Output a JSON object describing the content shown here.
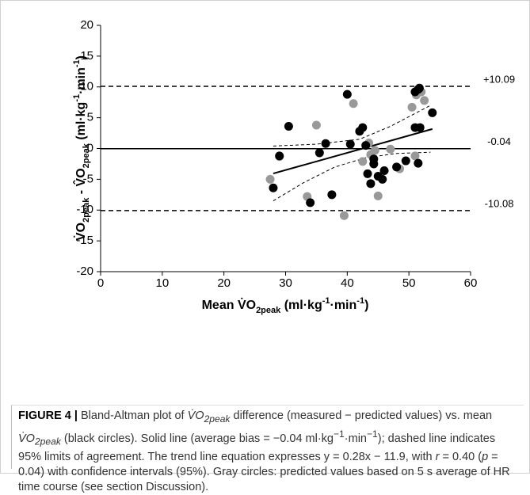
{
  "chart_data": {
    "type": "scatter",
    "ylabel": [
      "V̇O",
      "2peak",
      " - ",
      "V̂O",
      "2peak",
      " (ml·kg",
      "-1",
      "·min",
      "-1",
      ")"
    ],
    "xlabel": [
      "Mean V̇O",
      "2peak",
      " (ml·kg",
      "-1",
      "·min",
      "-1",
      ")"
    ],
    "xlim": [
      0,
      60
    ],
    "xticks": [
      0,
      10,
      20,
      30,
      40,
      50,
      60
    ],
    "ylim": [
      -20,
      20
    ],
    "yticks": [
      -20,
      -15,
      -10,
      -5,
      0,
      5,
      10,
      15,
      20
    ],
    "series": [
      {
        "color": "#000000",
        "x": [
          28,
          29,
          30.5,
          35.5,
          36.5,
          34,
          37.5,
          40,
          40.5,
          42,
          42.5,
          43,
          43.3,
          43.8,
          44.3,
          44.3,
          45,
          45.7,
          46,
          48,
          49.5,
          51,
          51,
          51.5,
          51.7,
          51.8,
          51.5,
          53.8
        ],
        "values": [
          -6.4,
          -1.2,
          3.6,
          -0.7,
          0.8,
          -8.8,
          -7.5,
          8.8,
          0.7,
          2.8,
          3.4,
          0.5,
          -4.1,
          -5.7,
          -1.7,
          -2.5,
          -4.5,
          -5,
          -3.6,
          -3,
          -2,
          3.4,
          9.2,
          9.6,
          9.8,
          3.4,
          -2.4,
          5.8
        ]
      },
      {
        "color": "#999999",
        "x": [
          27.5,
          29,
          33.5,
          35,
          39.5,
          41,
          42.5,
          43.5,
          43.8,
          44.5,
          45,
          47,
          48.5,
          50.5,
          51,
          51.2,
          52,
          52.5
        ],
        "values": [
          -5,
          -1.3,
          -7.8,
          3.8,
          -10.9,
          7.3,
          -2.1,
          0.9,
          -1,
          -0.3,
          -7.7,
          -0.1,
          -3.3,
          6.7,
          -1.2,
          8.7,
          9.2,
          7.8
        ]
      }
    ],
    "ref_lines": [
      {
        "value": 10.09,
        "label": "+10.09",
        "style": "dashed"
      },
      {
        "value": -0.04,
        "label": "-0.04",
        "style": "solid"
      },
      {
        "value": -10.08,
        "label": "-10.08",
        "style": "dashed"
      }
    ],
    "trend": {
      "slope": 0.28,
      "intercept": -11.9,
      "xlim": [
        28,
        53.8
      ]
    },
    "ci_upper": {
      "x": [
        28,
        35,
        42,
        47,
        53.5
      ],
      "values": [
        0.4,
        0.7,
        1.5,
        3.6,
        7
      ]
    },
    "ci_lower": {
      "x": [
        28,
        33,
        38,
        43,
        48,
        53.5
      ],
      "values": [
        -8.5,
        -5.5,
        -3,
        -1.5,
        -0.8,
        -0.6
      ]
    },
    "caption": [
      "FIGURE 4 |",
      " Bland-Altman plot of ",
      "V̇O",
      "2peak",
      " difference (measured − predicted values) vs. mean ",
      "V̇O",
      "2peak",
      " (black circles). Solid line (average bias = −0.04 ml·kg",
      "−1",
      "·min",
      "−1",
      "); dashed line indicates 95% limits of agreement. The trend line equation expresses y = 0.28x − 11.9, with ",
      "r",
      " = 0.40 (",
      "p",
      " = 0.04) with confidence intervals (95%). Gray circles: predicted values based on 5 s average of HR time course (see section Discussion)."
    ]
  }
}
